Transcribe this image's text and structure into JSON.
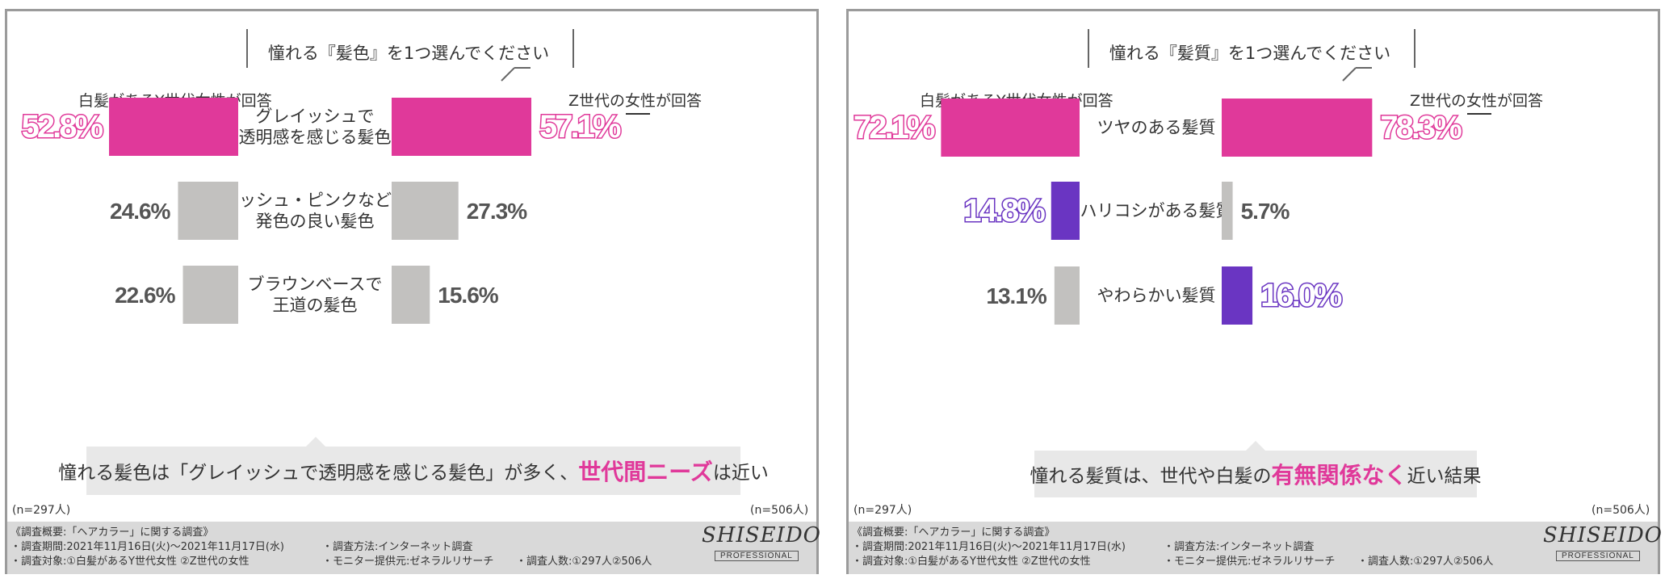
{
  "charts": [
    {
      "title": "憧れる『髪色』を1つ選んでください",
      "group_left": "白髪があるY世代女性が回答",
      "group_right": "Z世代の女性が回答",
      "n_left": "(n=297人)",
      "n_right": "(n=506人)",
      "summary_pre": "憧れる髪色は「グレイッシュで透明感を感じる髪色」が多く、",
      "summary_hl": "世代間ニーズ",
      "summary_post": "は近い",
      "colors": {
        "pink": "#e0399a",
        "gray": "#c2c1bf",
        "purple": "#6a35c2"
      },
      "chart_data": {
        "type": "bar",
        "categories": [
          [
            "グレイッシュで",
            "透明感を感じる髪色"
          ],
          [
            "アッシュ・ピンクなど、",
            "発色の良い髪色"
          ],
          [
            "ブラウンベースで",
            "王道の髪色"
          ]
        ],
        "series": [
          {
            "name": "白髪があるY世代女性が回答",
            "values": [
              52.8,
              24.6,
              22.6
            ],
            "labels": [
              "52.8%",
              "24.6%",
              "22.6%"
            ],
            "colors": [
              "pink",
              "gray",
              "gray"
            ]
          },
          {
            "name": "Z世代の女性が回答",
            "values": [
              57.1,
              27.3,
              15.6
            ],
            "labels": [
              "57.1%",
              "27.3%",
              "15.6%"
            ],
            "colors": [
              "pink",
              "gray",
              "gray"
            ]
          }
        ],
        "unit": "%"
      }
    },
    {
      "title": "憧れる『髪質』を1つ選んでください",
      "group_left": "白髪があるY世代女性が回答",
      "group_right": "Z世代の女性が回答",
      "n_left": "(n=297人)",
      "n_right": "(n=506人)",
      "summary_pre": "憧れる髪質は、世代や白髪の",
      "summary_hl": "有無関係なく",
      "summary_post": "近い結果",
      "colors": {
        "pink": "#e0399a",
        "gray": "#c2c1bf",
        "purple": "#6a35c2"
      },
      "chart_data": {
        "type": "bar",
        "categories": [
          [
            "ツヤのある髪質"
          ],
          [
            "ハリコシがある髪質"
          ],
          [
            "やわらかい髪質"
          ]
        ],
        "series": [
          {
            "name": "白髪があるY世代女性が回答",
            "values": [
              72.1,
              14.8,
              13.1
            ],
            "labels": [
              "72.1%",
              "14.8%",
              "13.1%"
            ],
            "colors": [
              "pink",
              "purple",
              "gray"
            ]
          },
          {
            "name": "Z世代の女性が回答",
            "values": [
              78.3,
              5.7,
              16.0
            ],
            "labels": [
              "78.3%",
              "5.7%",
              "16.0%"
            ],
            "colors": [
              "pink",
              "gray",
              "purple"
            ]
          }
        ],
        "unit": "%"
      }
    }
  ],
  "footer": {
    "line1": "《調査概要:「ヘアカラー」に関する調査》",
    "line2a": "・調査期間:2021年11月16日(火)～2021年11月17日(水)",
    "line2b": "・調査方法:インターネット調査",
    "line3a": "・調査対象:①白髪があるY世代女性 ②Z世代の女性",
    "line3b": "・モニター提供元:ゼネラルリサーチ",
    "line3c": "・調査人数:①297人②506人",
    "logo": "SHISEIDO",
    "logo_sub": "PROFESSIONAL"
  }
}
